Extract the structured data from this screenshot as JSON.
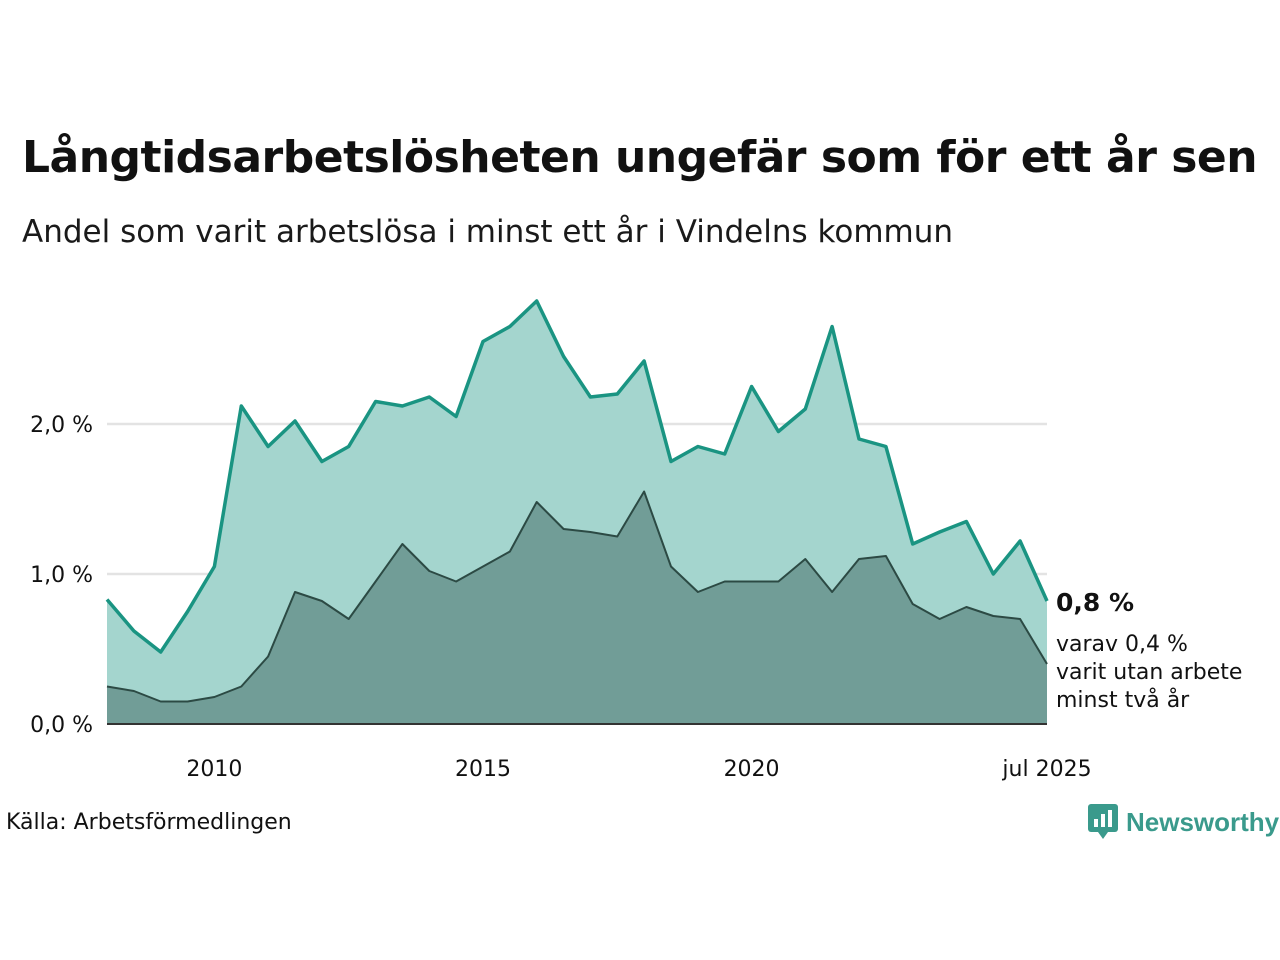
{
  "title": "Långtidsarbetslösheten ungefär som för ett år sen",
  "subtitle": "Andel som varit arbetslösa i minst ett år i Vindelns kommun",
  "source": "Källa: Arbetsförmedlingen",
  "brand": "Newsworthy",
  "colors": {
    "series_main_line": "#1a9482",
    "series_main_fill": "#a4d5ce",
    "series_long_line": "#2c4a44",
    "series_long_fill": "#719d97",
    "grid": "#e3e3e3"
  },
  "chart_data": {
    "type": "area",
    "x_ticks": [
      "2010",
      "2015",
      "2020",
      "jul 2025"
    ],
    "y_ticks": [
      "0,0 %",
      "1,0 %",
      "2,0 %"
    ],
    "ylim": [
      0,
      3.0
    ],
    "xlim": [
      "2008-01",
      "2025-07"
    ],
    "grid": true,
    "series": [
      {
        "key": "main",
        "x": [
          "2008-01",
          "2008-07",
          "2009-01",
          "2009-07",
          "2010-01",
          "2010-07",
          "2011-01",
          "2011-07",
          "2012-01",
          "2012-07",
          "2013-01",
          "2013-07",
          "2014-01",
          "2014-07",
          "2015-01",
          "2015-07",
          "2016-01",
          "2016-07",
          "2017-01",
          "2017-07",
          "2018-01",
          "2018-07",
          "2019-01",
          "2019-07",
          "2020-01",
          "2020-07",
          "2021-01",
          "2021-07",
          "2022-01",
          "2022-07",
          "2023-01",
          "2023-07",
          "2024-01",
          "2024-07",
          "2025-01",
          "2025-07"
        ],
        "values": [
          0.83,
          0.62,
          0.48,
          0.75,
          1.05,
          2.12,
          1.85,
          2.02,
          1.75,
          1.85,
          2.15,
          2.12,
          2.18,
          2.05,
          2.55,
          2.65,
          2.82,
          2.45,
          2.18,
          2.2,
          2.42,
          1.75,
          1.85,
          1.8,
          2.25,
          1.95,
          2.1,
          2.65,
          1.9,
          1.85,
          1.2,
          1.28,
          1.35,
          1.0,
          1.22,
          0.82
        ]
      },
      {
        "key": "long",
        "x": [
          "2008-01",
          "2008-07",
          "2009-01",
          "2009-07",
          "2010-01",
          "2010-07",
          "2011-01",
          "2011-07",
          "2012-01",
          "2012-07",
          "2013-01",
          "2013-07",
          "2014-01",
          "2014-07",
          "2015-01",
          "2015-07",
          "2016-01",
          "2016-07",
          "2017-01",
          "2017-07",
          "2018-01",
          "2018-07",
          "2019-01",
          "2019-07",
          "2020-01",
          "2020-07",
          "2021-01",
          "2021-07",
          "2022-01",
          "2022-07",
          "2023-01",
          "2023-07",
          "2024-01",
          "2024-07",
          "2025-01",
          "2025-07"
        ],
        "values": [
          0.25,
          0.22,
          0.15,
          0.15,
          0.18,
          0.25,
          0.45,
          0.88,
          0.82,
          0.7,
          0.95,
          1.2,
          1.02,
          0.95,
          1.05,
          1.15,
          1.48,
          1.3,
          1.28,
          1.25,
          1.55,
          1.05,
          0.88,
          0.95,
          0.95,
          0.95,
          1.1,
          0.88,
          1.1,
          1.12,
          0.8,
          0.7,
          0.78,
          0.72,
          0.7,
          0.4
        ]
      }
    ],
    "annotations": {
      "end_value": "0,8 %",
      "end_sub": [
        "varav 0,4 %",
        "varit utan arbete",
        "minst två år"
      ]
    }
  }
}
